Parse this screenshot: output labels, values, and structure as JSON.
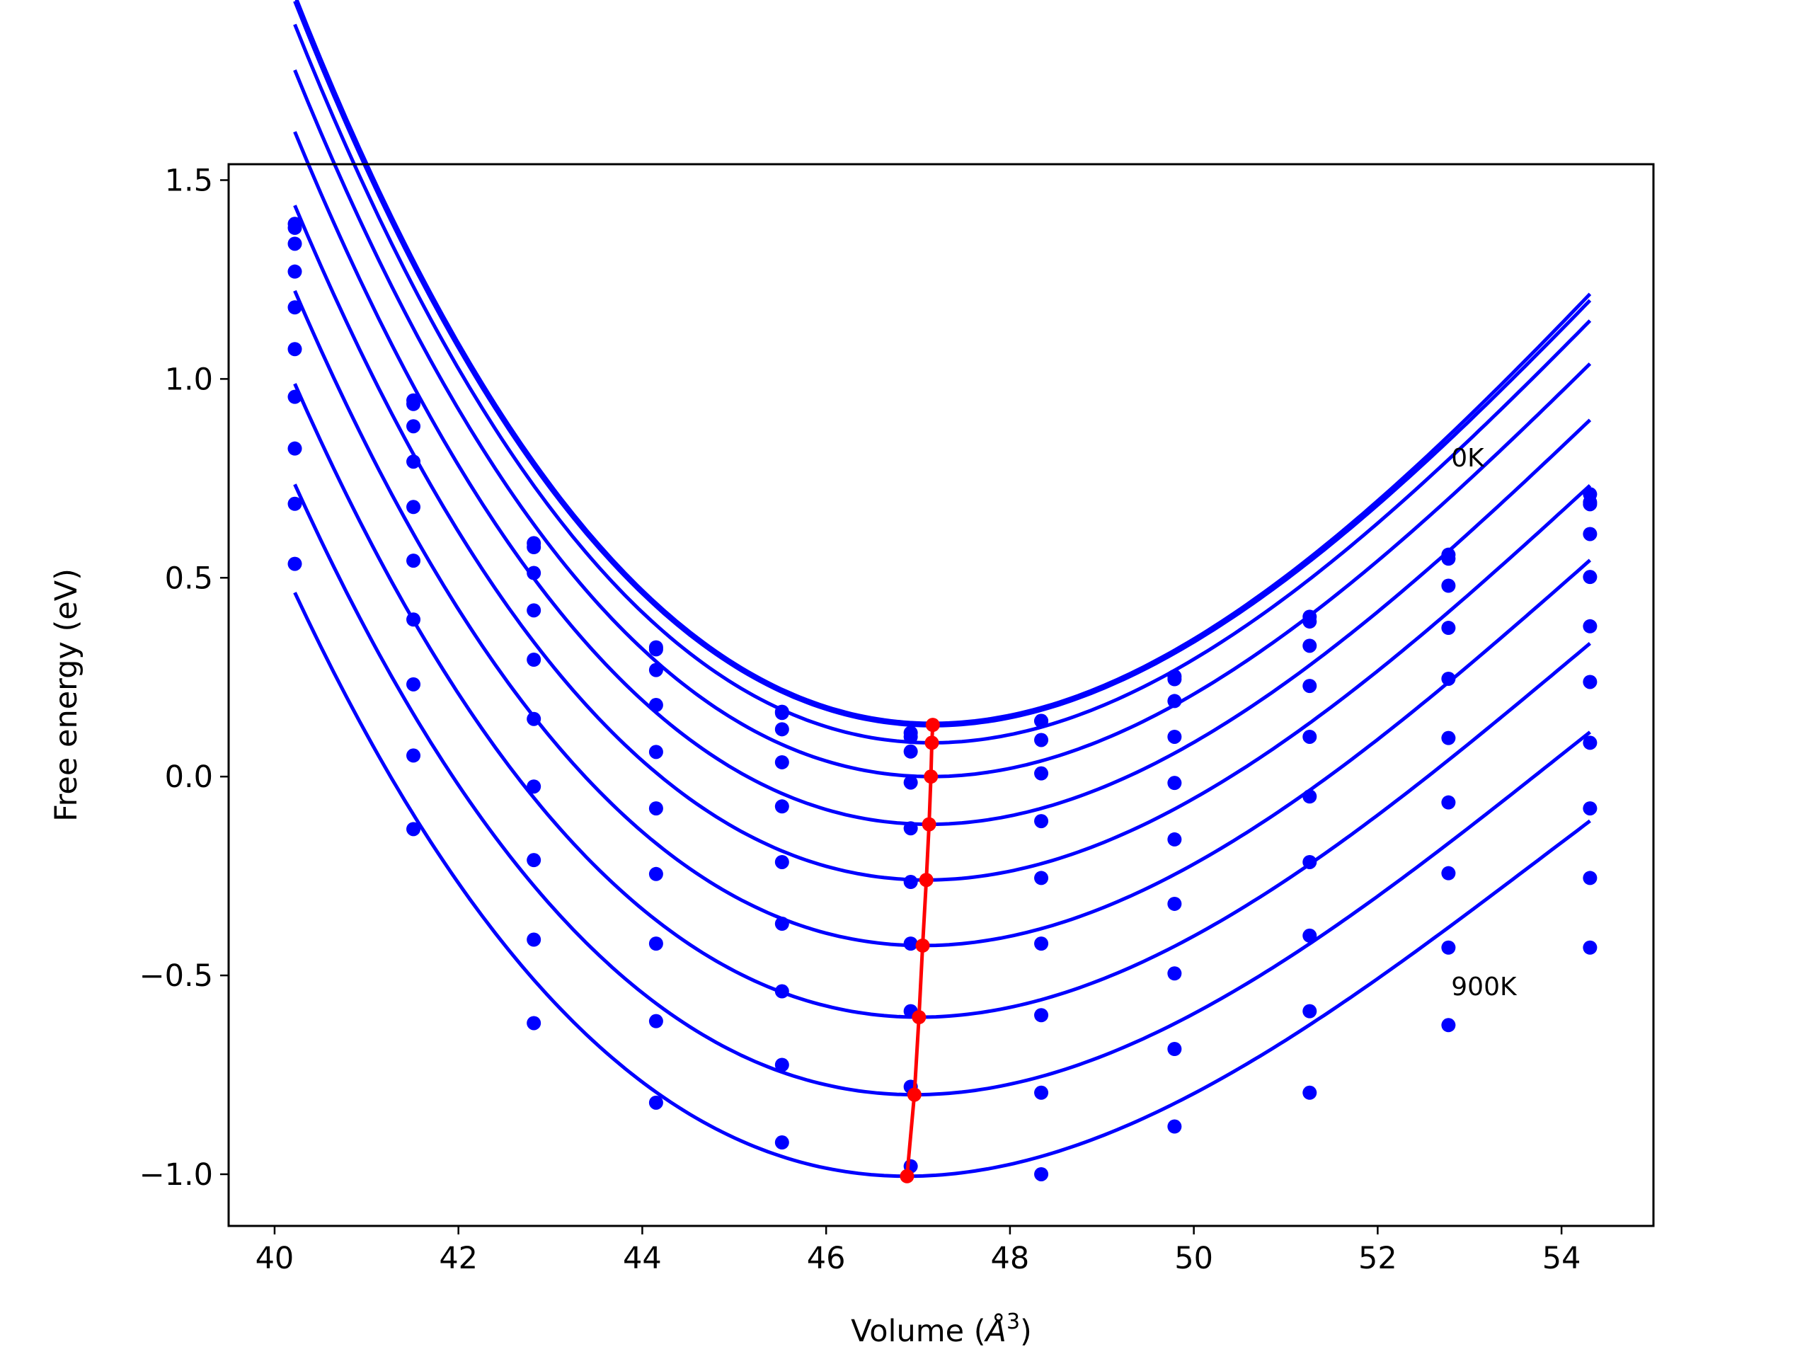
{
  "chart_data": {
    "type": "scatter",
    "title": "",
    "xlabel_prefix": "Volume (",
    "xlabel_symbol": "Å",
    "xlabel_exp": "3",
    "xlabel_suffix": ")",
    "ylabel": "Free energy (eV)",
    "xlim": [
      39.5,
      55.0
    ],
    "ylim": [
      -1.13,
      1.54
    ],
    "xticks": [
      40,
      42,
      44,
      46,
      48,
      50,
      52,
      54
    ],
    "xtick_labels": [
      "40",
      "42",
      "44",
      "46",
      "48",
      "50",
      "52",
      "54"
    ],
    "yticks": [
      -1.0,
      -0.5,
      0.0,
      0.5,
      1.0,
      1.5
    ],
    "ytick_labels": [
      "−1.0",
      "−0.5",
      "0.0",
      "0.5",
      "1.0",
      "1.5"
    ],
    "grid": false,
    "colors": {
      "curves": "#0000ff",
      "minimum_line": "#ff0000"
    },
    "annotations": [
      {
        "text": "0K",
        "x": 52.8,
        "y": 0.78
      },
      {
        "text": "900K",
        "x": 52.8,
        "y": -0.55
      }
    ],
    "volumes": [
      40.22,
      41.51,
      42.82,
      44.15,
      45.52,
      46.92,
      48.34,
      49.79,
      51.26,
      52.77,
      54.31
    ],
    "series": [
      {
        "points": [
          1.39,
          0.946,
          0.587,
          0.325,
          0.163,
          0.11,
          0.14,
          0.252,
          0.402,
          0.558,
          0.71
        ],
        "fit": {
          "v0": 47.16,
          "e0": 0.134,
          "a": 0.0297,
          "b": -0.0012,
          "vmin": 40.22,
          "vmax": 54.31
        }
      },
      {
        "points": [
          1.38,
          0.937,
          0.577,
          0.32,
          0.16,
          0.1,
          0.14,
          0.245,
          0.39,
          0.548,
          0.69
        ],
        "fit": {
          "v0": 47.16,
          "e0": 0.128,
          "a": 0.0295,
          "b": -0.0012,
          "vmin": 40.22,
          "vmax": 54.31
        }
      },
      {
        "points": [
          1.34,
          0.881,
          0.512,
          0.268,
          0.119,
          0.063,
          0.092,
          0.19,
          0.329,
          0.48,
          0.685
        ],
        "fit": {
          "v0": 47.15,
          "e0": 0.085,
          "a": 0.0293,
          "b": -0.0012,
          "vmin": 40.22,
          "vmax": 54.31
        }
      },
      {
        "points": [
          1.27,
          0.792,
          0.418,
          0.18,
          0.036,
          -0.015,
          0.008,
          0.1,
          0.228,
          0.374,
          0.61
        ],
        "fit": {
          "v0": 47.14,
          "e0": 0.0,
          "a": 0.0288,
          "b": -0.0012,
          "vmin": 40.22,
          "vmax": 54.31
        }
      },
      {
        "points": [
          1.18,
          0.678,
          0.294,
          0.062,
          -0.075,
          -0.13,
          -0.112,
          -0.016,
          0.1,
          0.246,
          0.502
        ],
        "fit": {
          "v0": 47.12,
          "e0": -0.12,
          "a": 0.0283,
          "b": -0.0012,
          "vmin": 40.22,
          "vmax": 54.31
        }
      },
      {
        "points": [
          1.075,
          0.543,
          0.145,
          -0.08,
          -0.215,
          -0.265,
          -0.255,
          -0.158,
          -0.05,
          0.097,
          0.378
        ],
        "fit": {
          "v0": 47.09,
          "e0": -0.26,
          "a": 0.0277,
          "b": -0.0012,
          "vmin": 40.22,
          "vmax": 54.31
        }
      },
      {
        "points": [
          0.955,
          0.395,
          -0.025,
          -0.245,
          -0.37,
          -0.42,
          -0.42,
          -0.32,
          -0.215,
          -0.065,
          0.238
        ],
        "fit": {
          "v0": 47.05,
          "e0": -0.425,
          "a": 0.0271,
          "b": -0.0012,
          "vmin": 40.22,
          "vmax": 54.31
        }
      },
      {
        "points": [
          0.825,
          0.232,
          -0.21,
          -0.42,
          -0.54,
          -0.59,
          -0.6,
          -0.495,
          -0.4,
          -0.243,
          0.085
        ],
        "fit": {
          "v0": 47.01,
          "e0": -0.605,
          "a": 0.0264,
          "b": -0.0012,
          "vmin": 40.22,
          "vmax": 54.31
        }
      },
      {
        "points": [
          0.686,
          0.053,
          -0.41,
          -0.615,
          -0.725,
          -0.78,
          -0.795,
          -0.685,
          -0.59,
          -0.43,
          -0.08
        ],
        "fit": {
          "v0": 46.96,
          "e0": -0.8,
          "a": 0.0257,
          "b": -0.0012,
          "vmin": 40.22,
          "vmax": 54.31
        }
      },
      {
        "points": [
          0.535,
          -0.132,
          -0.62,
          -0.82,
          -0.92,
          -0.98,
          -1.0,
          -0.88,
          -0.795,
          -0.625,
          -0.255
        ],
        "fit": {
          "v0": 46.88,
          "e0": -1.005,
          "a": 0.0251,
          "b": -0.0012,
          "vmin": 40.22,
          "vmax": 54.31
        }
      }
    ],
    "extra_points": [
      {
        "x": 54.31,
        "y": -0.43
      }
    ],
    "minimum_line": {
      "x": [
        47.16,
        47.15,
        47.14,
        47.12,
        47.09,
        47.05,
        47.01,
        46.96,
        46.88
      ],
      "y": [
        0.13,
        0.085,
        0.0,
        -0.12,
        -0.26,
        -0.425,
        -0.605,
        -0.8,
        -1.005
      ]
    }
  }
}
